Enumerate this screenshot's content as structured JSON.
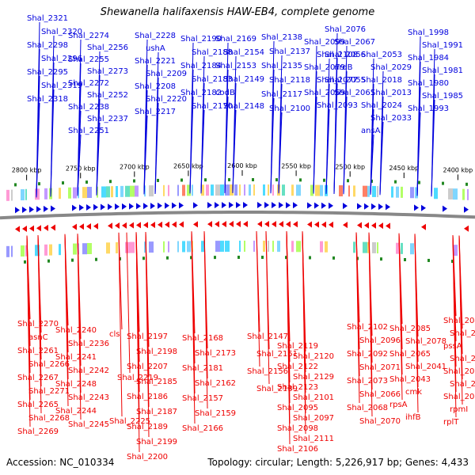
{
  "title": "Shewanella halifaxensis HAW-EB4, complete genome",
  "footer": {
    "accession": "Accession: NC_010334",
    "summary": "Topology: circular; Length: 5,226,917 bp; Genes: 4,433"
  },
  "colors": {
    "forward_strand": "#0000dd",
    "reverse_strand": "#ee0000",
    "backbone": "#888888",
    "gc_marker": "#228822",
    "tick": "#000000"
  },
  "chart_data": {
    "type": "genome_map",
    "topology": "circular",
    "length_bp": 5226917,
    "gene_count": 4433,
    "visible_range_kbp": [
      2390,
      2810
    ],
    "scale_ticks_kbp": [
      2800,
      2750,
      2700,
      2650,
      2600,
      2550,
      2500,
      2450,
      2400
    ],
    "scale_tick_labels": [
      "2800 kbp",
      "2750 kbp",
      "2700 kbp",
      "2650 kbp",
      "2600 kbp",
      "2550 kbp",
      "2500 kbp",
      "2450 kbp",
      "2400 kbp"
    ],
    "forward_genes": [
      {
        "name": "Shal_2321"
      },
      {
        "name": "Shal_2320"
      },
      {
        "name": "Shal_2298"
      },
      {
        "name": "Shal_2296"
      },
      {
        "name": "Shal_2295"
      },
      {
        "name": "Shal_2319"
      },
      {
        "name": "Shal_2318"
      },
      {
        "name": "Shal_2274"
      },
      {
        "name": "Shal_2256"
      },
      {
        "name": "Shal_2255"
      },
      {
        "name": "Shal_2273"
      },
      {
        "name": "Shal_2272"
      },
      {
        "name": "Shal_2252"
      },
      {
        "name": "Shal_2238"
      },
      {
        "name": "Shal_2237"
      },
      {
        "name": "Shal_2251"
      },
      {
        "name": "Shal_2228"
      },
      {
        "name": "ushA"
      },
      {
        "name": "Shal_2221"
      },
      {
        "name": "Shal_2209"
      },
      {
        "name": "Shal_2208"
      },
      {
        "name": "Shal_2220"
      },
      {
        "name": "Shal_2217"
      },
      {
        "name": "Shal_2190"
      },
      {
        "name": "Shal_2188"
      },
      {
        "name": "Shal_2184"
      },
      {
        "name": "Shal_2183"
      },
      {
        "name": "Shal_2182"
      },
      {
        "name": "Shal_2170"
      },
      {
        "name": "Shal_2169"
      },
      {
        "name": "Shal_2154"
      },
      {
        "name": "Shal_2153"
      },
      {
        "name": "Shal_2149"
      },
      {
        "name": "codB"
      },
      {
        "name": "Shal_2148"
      },
      {
        "name": "Shal_2138"
      },
      {
        "name": "Shal_2137"
      },
      {
        "name": "Shal_2135"
      },
      {
        "name": "Shal_2118"
      },
      {
        "name": "Shal_2117"
      },
      {
        "name": "Shal_2100"
      },
      {
        "name": "Shal_2099"
      },
      {
        "name": "Shal_2108"
      },
      {
        "name": "Shal_2079"
      },
      {
        "name": "Shal_2077"
      },
      {
        "name": "Shal_2069"
      },
      {
        "name": "Shal_2093"
      },
      {
        "name": "Shal_2076"
      },
      {
        "name": "Shal_2067"
      },
      {
        "name": "Shal_2056"
      },
      {
        "name": "nrdB"
      },
      {
        "name": "Shal_2055"
      },
      {
        "name": "Shal_2061"
      },
      {
        "name": "Shal_2053"
      },
      {
        "name": "Shal_2029"
      },
      {
        "name": "Shal_2018"
      },
      {
        "name": "Shal_2013"
      },
      {
        "name": "Shal_2024"
      },
      {
        "name": "Shal_2033"
      },
      {
        "name": "ansA"
      },
      {
        "name": "Shal_1998"
      },
      {
        "name": "Shal_1991"
      },
      {
        "name": "Shal_1984"
      },
      {
        "name": "Shal_1981"
      },
      {
        "name": "Shal_1980"
      },
      {
        "name": "Shal_1985"
      },
      {
        "name": "Shal_1993"
      }
    ],
    "reverse_genes": [
      {
        "name": "Shal_2270"
      },
      {
        "name": "asnC"
      },
      {
        "name": "Shal_2261"
      },
      {
        "name": "Shal_2266"
      },
      {
        "name": "Shal_2267"
      },
      {
        "name": "Shal_2271"
      },
      {
        "name": "Shal_2265"
      },
      {
        "name": "Shal_2268"
      },
      {
        "name": "Shal_2269"
      },
      {
        "name": "Shal_2240"
      },
      {
        "name": "Shal_2236"
      },
      {
        "name": "Shal_2241"
      },
      {
        "name": "Shal_2242"
      },
      {
        "name": "Shal_2248"
      },
      {
        "name": "Shal_2243"
      },
      {
        "name": "Shal_2244"
      },
      {
        "name": "Shal_2245"
      },
      {
        "name": "cls"
      },
      {
        "name": "Shal_2219"
      },
      {
        "name": "Shal_2225"
      },
      {
        "name": "Shal_2197"
      },
      {
        "name": "Shal_2198"
      },
      {
        "name": "Shal_2207"
      },
      {
        "name": "Shal_2185"
      },
      {
        "name": "Shal_2186"
      },
      {
        "name": "Shal_2187"
      },
      {
        "name": "Shal_2189"
      },
      {
        "name": "Shal_2199"
      },
      {
        "name": "Shal_2200"
      },
      {
        "name": "Shal_2168"
      },
      {
        "name": "Shal_2173"
      },
      {
        "name": "Shal_2181"
      },
      {
        "name": "Shal_2162"
      },
      {
        "name": "Shal_2157"
      },
      {
        "name": "Shal_2159"
      },
      {
        "name": "Shal_2166"
      },
      {
        "name": "Shal_2147"
      },
      {
        "name": "Shal_2151"
      },
      {
        "name": "Shal_2156"
      },
      {
        "name": "Shal_2139"
      },
      {
        "name": "Shal_2119"
      },
      {
        "name": "Shal_2120"
      },
      {
        "name": "Shal_2122"
      },
      {
        "name": "Shal_2129"
      },
      {
        "name": "Shal_2123"
      },
      {
        "name": "Shal_2101"
      },
      {
        "name": "Shal_2095"
      },
      {
        "name": "Shal_2097"
      },
      {
        "name": "Shal_2098"
      },
      {
        "name": "Shal_2111"
      },
      {
        "name": "Shal_2106"
      },
      {
        "name": "Shal_2102"
      },
      {
        "name": "Shal_2096"
      },
      {
        "name": "Shal_2092"
      },
      {
        "name": "Shal_2071"
      },
      {
        "name": "Shal_2073"
      },
      {
        "name": "Shal_2066"
      },
      {
        "name": "Shal_2068"
      },
      {
        "name": "Shal_2070"
      },
      {
        "name": "Shal_2085"
      },
      {
        "name": "Shal_2078"
      },
      {
        "name": "Shal_2065"
      },
      {
        "name": "Shal_2041"
      },
      {
        "name": "Shal_2043"
      },
      {
        "name": "cmk"
      },
      {
        "name": "rpsA"
      },
      {
        "name": "ihfB"
      },
      {
        "name": "Shal_2047"
      },
      {
        "name": "Shal_2057"
      },
      {
        "name": "pssA"
      },
      {
        "name": "Shal_2014"
      },
      {
        "name": "Shal_2015"
      },
      {
        "name": "Shal_2017"
      },
      {
        "name": "Shal_2020"
      },
      {
        "name": "rpmI"
      },
      {
        "name": "rplT"
      },
      {
        "name": "Shal_2030"
      },
      {
        "name": "Shal_2032"
      },
      {
        "name": "Shal_2039"
      }
    ]
  }
}
